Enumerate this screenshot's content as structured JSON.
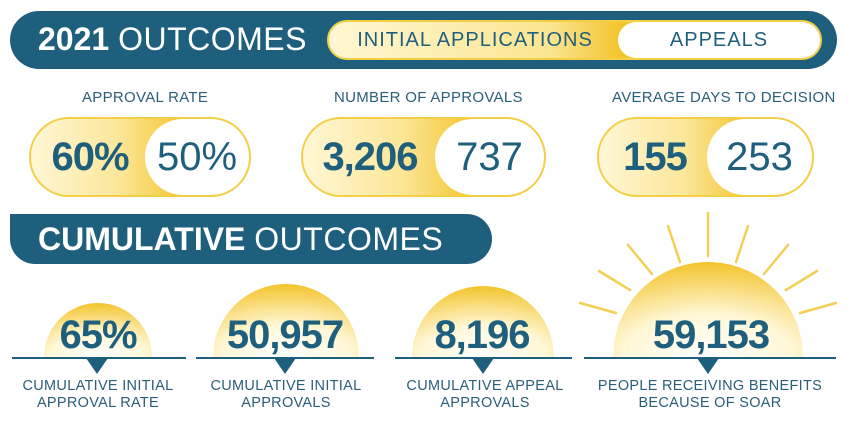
{
  "header": {
    "title_bold": "2021",
    "title_light": "OUTCOMES",
    "legend_left": "INITIAL APPLICATIONS",
    "legend_right": "APPEALS"
  },
  "metrics": [
    {
      "label": "APPROVAL RATE",
      "initial": "60%",
      "appeals": "50%"
    },
    {
      "label": "NUMBER OF APPROVALS",
      "initial": "3,206",
      "appeals": "737"
    },
    {
      "label": "AVERAGE DAYS TO DECISION",
      "initial": "155",
      "appeals": "253"
    }
  ],
  "cumulative": {
    "title_bold": "CUMULATIVE",
    "title_light": "OUTCOMES",
    "items": [
      {
        "value": "65%",
        "label_line1": "CUMULATIVE INITIAL",
        "label_line2": "APPROVAL RATE"
      },
      {
        "value": "50,957",
        "label_line1": "CUMULATIVE INITIAL",
        "label_line2": "APPROVALS"
      },
      {
        "value": "8,196",
        "label_line1": "CUMULATIVE APPEAL",
        "label_line2": "APPROVALS"
      },
      {
        "value": "59,153",
        "label_line1": "PEOPLE RECEIVING BENEFITS",
        "label_line2": "BECAUSE OF SOAR"
      }
    ]
  },
  "colors": {
    "navy": "#1f5f7e",
    "gold": "#f3c42b",
    "pale_gold": "#fff7d6"
  }
}
